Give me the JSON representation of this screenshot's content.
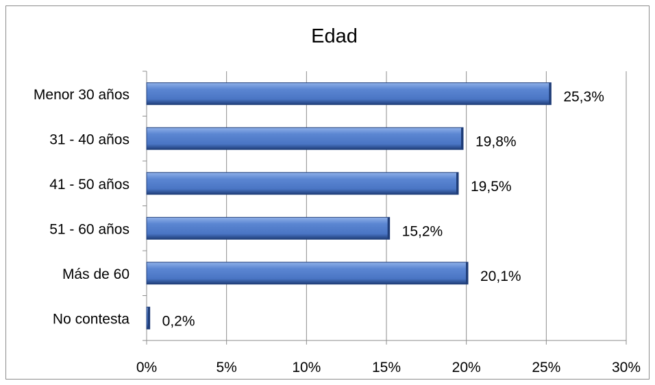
{
  "chart_data": {
    "type": "bar",
    "orientation": "horizontal",
    "title": "Edad",
    "categories": [
      "Menor 30 años",
      "31 - 40 años",
      "41 - 50 años",
      "51 - 60 años",
      "Más de 60",
      "No contesta"
    ],
    "values": [
      25.3,
      19.8,
      19.5,
      15.2,
      20.1,
      0.2
    ],
    "data_labels": [
      "25,3%",
      "19,8%",
      "19,5%",
      "15,2%",
      "20,1%",
      "0,2%"
    ],
    "xlim": [
      0,
      30
    ],
    "x_ticks": [
      0,
      5,
      10,
      15,
      20,
      25,
      30
    ],
    "x_tick_labels": [
      "0%",
      "5%",
      "10%",
      "15%",
      "20%",
      "25%",
      "30%"
    ],
    "grid": "vertical",
    "legend": "none",
    "bar_color": "#4a75c4",
    "bar_color_dark": "#1f3d78",
    "bar_color_light": "#8fb0e8"
  }
}
